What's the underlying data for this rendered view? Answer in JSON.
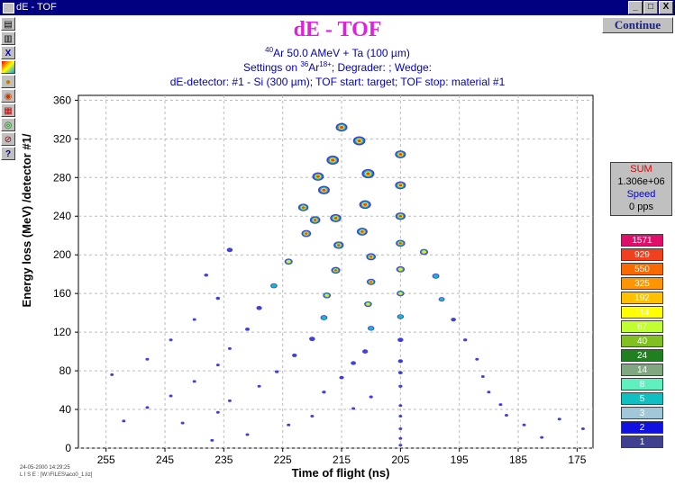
{
  "window": {
    "title": "dE - TOF",
    "buttons": [
      "_",
      "□",
      "X"
    ]
  },
  "toolbar": {
    "icons": [
      "print-icon",
      "printer-icon",
      "close-x-icon",
      "color-map-icon",
      "settings-icon",
      "zoom-in-icon",
      "grid-icon",
      "target-icon",
      "zoom-out-icon",
      "help-icon"
    ]
  },
  "continue_label": "Continue",
  "sum_box": {
    "sum_label": "SUM",
    "sum_value": "1.306e+06",
    "speed_label": "Speed",
    "speed_value": "0 pps"
  },
  "legend": [
    {
      "label": "1571",
      "color": "#e0106a"
    },
    {
      "label": "929",
      "color": "#f04020"
    },
    {
      "label": "550",
      "color": "#f86a00"
    },
    {
      "label": "325",
      "color": "#ff9500"
    },
    {
      "label": "192",
      "color": "#ffc000"
    },
    {
      "label": "114",
      "color": "#ffff00"
    },
    {
      "label": "67",
      "color": "#c0ff30"
    },
    {
      "label": "40",
      "color": "#80c020"
    },
    {
      "label": "24",
      "color": "#208020"
    },
    {
      "label": "14",
      "color": "#80a880"
    },
    {
      "label": "8",
      "color": "#60f0c0"
    },
    {
      "label": "5",
      "color": "#10c0c0"
    },
    {
      "label": "3",
      "color": "#a0c8d8"
    },
    {
      "label": "2",
      "color": "#1010e0"
    },
    {
      "label": "1",
      "color": "#404090"
    }
  ],
  "footer": {
    "date": "24-05-2000   14:29:25",
    "file": "L I S E  :  [W:\\FILES\\aco0_1.liz]"
  },
  "chart_data": {
    "type": "scatter",
    "title": "dE - TOF",
    "subtitle_lines": [
      {
        "sup1": "40",
        "text1": "Ar 50.0 AMeV + Ta (100 µm)"
      },
      {
        "text1": "Settings on ",
        "sup1": "36",
        "text2": "Ar",
        "sup2": "18+",
        "text3": "; Degrader:  ; Wedge:"
      },
      {
        "text1": "dE-detector: #1 -  Si (300 µm); TOF start: target;   TOF stop: material #1"
      }
    ],
    "xlabel": "Time of flight (ns)",
    "ylabel": "Energy loss (MeV) /detector #1/",
    "xlim": [
      259.7,
      172.3
    ],
    "ylim": [
      0,
      365
    ],
    "xticks": [
      255,
      245,
      235,
      225,
      215,
      205,
      195,
      185,
      175
    ],
    "yticks": [
      0,
      40,
      80,
      120,
      160,
      200,
      240,
      280,
      320,
      360
    ],
    "grid": true,
    "points": [
      [
        215,
        332
      ],
      [
        212,
        318
      ],
      [
        205,
        304
      ],
      [
        216.5,
        298
      ],
      [
        210.5,
        284
      ],
      [
        205,
        272
      ],
      [
        218,
        267
      ],
      [
        211,
        252
      ],
      [
        205,
        240
      ],
      [
        219.5,
        236
      ],
      [
        211.5,
        224
      ],
      [
        205,
        212
      ],
      [
        219,
        281
      ],
      [
        221.5,
        249
      ],
      [
        216,
        238
      ],
      [
        221,
        222
      ],
      [
        215.5,
        210
      ],
      [
        210,
        198
      ],
      [
        205,
        185
      ],
      [
        224,
        193
      ],
      [
        216,
        184
      ],
      [
        210,
        172
      ],
      [
        205,
        160
      ],
      [
        226.5,
        168
      ],
      [
        217.5,
        158
      ],
      [
        210.5,
        149
      ],
      [
        205,
        136
      ],
      [
        229,
        145
      ],
      [
        218,
        135
      ],
      [
        210,
        124
      ],
      [
        205,
        112
      ],
      [
        231,
        123
      ],
      [
        220,
        113
      ],
      [
        211,
        100
      ],
      [
        205,
        90
      ],
      [
        234,
        103
      ],
      [
        223,
        96
      ],
      [
        213,
        88
      ],
      [
        205,
        78
      ],
      [
        226,
        79
      ],
      [
        215,
        73
      ],
      [
        205,
        64
      ],
      [
        236,
        86
      ],
      [
        229,
        64
      ],
      [
        218,
        58
      ],
      [
        210,
        53
      ],
      [
        205,
        44
      ],
      [
        234,
        49
      ],
      [
        220,
        33
      ],
      [
        213,
        41
      ],
      [
        205,
        33
      ],
      [
        240,
        69
      ],
      [
        244,
        54
      ],
      [
        248,
        42
      ],
      [
        252,
        28
      ],
      [
        242,
        26
      ],
      [
        236,
        37
      ],
      [
        231,
        14
      ],
      [
        237,
        8
      ],
      [
        224,
        24
      ],
      [
        205,
        20
      ],
      [
        205,
        10
      ],
      [
        205,
        3
      ],
      [
        238,
        179
      ],
      [
        236,
        155
      ],
      [
        234,
        205
      ],
      [
        240,
        133
      ],
      [
        244,
        112
      ],
      [
        248,
        92
      ],
      [
        254,
        76
      ],
      [
        201,
        203
      ],
      [
        199,
        178
      ],
      [
        198,
        154
      ],
      [
        196,
        133
      ],
      [
        194,
        112
      ],
      [
        192,
        92
      ],
      [
        191,
        74
      ],
      [
        190,
        58
      ],
      [
        188,
        45
      ],
      [
        187,
        34
      ],
      [
        184,
        24
      ],
      [
        181,
        11
      ],
      [
        178,
        30
      ],
      [
        174,
        20
      ]
    ]
  }
}
